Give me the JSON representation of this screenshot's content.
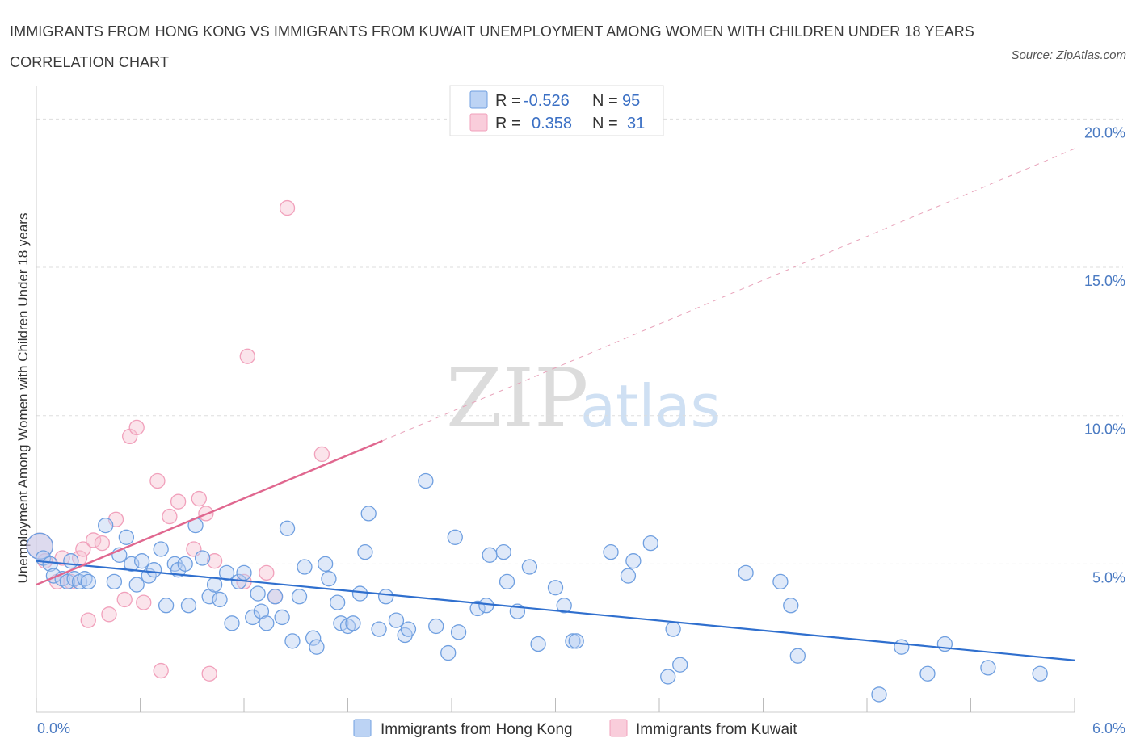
{
  "title": "IMMIGRANTS FROM HONG KONG VS IMMIGRANTS FROM KUWAIT UNEMPLOYMENT AMONG WOMEN WITH CHILDREN UNDER 18 YEARS CORRELATION CHART",
  "source": "Source: ZipAtlas.com",
  "watermark": {
    "zip": "ZIP",
    "atlas": "atlas"
  },
  "colors": {
    "blue": "#6f9fe0",
    "pink": "#f1a0bb",
    "blue_line": "#2f6fce",
    "pink_line": "#e0678f"
  },
  "legend": {
    "r_label": "R =",
    "n_label": "N =",
    "rows": [
      {
        "r": "-0.526",
        "n": "95"
      },
      {
        "r": "0.358",
        "n": "31"
      }
    ]
  },
  "chart_data": {
    "type": "scatter",
    "title": "IMMIGRANTS FROM HONG KONG VS IMMIGRANTS FROM KUWAIT UNEMPLOYMENT AMONG WOMEN WITH CHILDREN UNDER 18 YEARS CORRELATION CHART",
    "xlabel": "",
    "ylabel": "Unemployment Among Women with Children Under 18 years",
    "xlim": [
      0,
      6
    ],
    "ylim": [
      0,
      20
    ],
    "x_tick_labels": [
      "0.0%",
      "6.0%"
    ],
    "y_ticks": [
      5,
      10,
      15,
      20
    ],
    "y_tick_labels": [
      "5.0%",
      "10.0%",
      "15.0%",
      "20.0%"
    ],
    "grid": true,
    "legend_position": "top-center",
    "series": [
      {
        "name": "Immigrants from Hong Kong",
        "color": "#6f9fe0",
        "r": -0.526,
        "n": 95,
        "trend": {
          "x": [
            0,
            6
          ],
          "y": [
            5.1,
            1.75
          ],
          "style": "solid"
        },
        "points": [
          [
            0.02,
            5.6
          ],
          [
            0.04,
            5.2
          ],
          [
            0.08,
            5.0
          ],
          [
            0.1,
            4.6
          ],
          [
            0.15,
            4.5
          ],
          [
            0.18,
            4.4
          ],
          [
            0.2,
            5.1
          ],
          [
            0.22,
            4.5
          ],
          [
            0.25,
            4.4
          ],
          [
            0.28,
            4.5
          ],
          [
            0.3,
            4.4
          ],
          [
            0.4,
            6.3
          ],
          [
            0.45,
            4.4
          ],
          [
            0.48,
            5.3
          ],
          [
            0.52,
            5.9
          ],
          [
            0.55,
            5.0
          ],
          [
            0.58,
            4.3
          ],
          [
            0.61,
            5.1
          ],
          [
            0.65,
            4.6
          ],
          [
            0.68,
            4.8
          ],
          [
            0.72,
            5.5
          ],
          [
            0.75,
            3.6
          ],
          [
            0.8,
            5.0
          ],
          [
            0.82,
            4.8
          ],
          [
            0.86,
            5.0
          ],
          [
            0.88,
            3.6
          ],
          [
            0.92,
            6.3
          ],
          [
            0.96,
            5.2
          ],
          [
            1.0,
            3.9
          ],
          [
            1.03,
            4.3
          ],
          [
            1.06,
            3.8
          ],
          [
            1.1,
            4.7
          ],
          [
            1.13,
            3.0
          ],
          [
            1.17,
            4.4
          ],
          [
            1.2,
            4.7
          ],
          [
            1.25,
            3.2
          ],
          [
            1.28,
            4.0
          ],
          [
            1.3,
            3.4
          ],
          [
            1.33,
            3.0
          ],
          [
            1.38,
            3.9
          ],
          [
            1.42,
            3.2
          ],
          [
            1.45,
            6.2
          ],
          [
            1.48,
            2.4
          ],
          [
            1.52,
            3.9
          ],
          [
            1.55,
            4.9
          ],
          [
            1.6,
            2.5
          ],
          [
            1.62,
            2.2
          ],
          [
            1.67,
            5.0
          ],
          [
            1.69,
            4.5
          ],
          [
            1.74,
            3.7
          ],
          [
            1.76,
            3.0
          ],
          [
            1.8,
            2.9
          ],
          [
            1.83,
            3.0
          ],
          [
            1.87,
            4.0
          ],
          [
            1.9,
            5.4
          ],
          [
            1.92,
            6.7
          ],
          [
            1.98,
            2.8
          ],
          [
            2.02,
            3.9
          ],
          [
            2.08,
            3.1
          ],
          [
            2.13,
            2.6
          ],
          [
            2.15,
            2.8
          ],
          [
            2.25,
            7.8
          ],
          [
            2.31,
            2.9
          ],
          [
            2.38,
            2.0
          ],
          [
            2.42,
            5.9
          ],
          [
            2.44,
            2.7
          ],
          [
            2.55,
            3.5
          ],
          [
            2.6,
            3.6
          ],
          [
            2.62,
            5.3
          ],
          [
            2.7,
            5.4
          ],
          [
            2.72,
            4.4
          ],
          [
            2.78,
            3.4
          ],
          [
            2.85,
            4.9
          ],
          [
            2.9,
            2.3
          ],
          [
            3.0,
            4.2
          ],
          [
            3.05,
            3.6
          ],
          [
            3.1,
            2.4
          ],
          [
            3.12,
            2.4
          ],
          [
            3.32,
            5.4
          ],
          [
            3.42,
            4.6
          ],
          [
            3.45,
            5.1
          ],
          [
            3.55,
            5.7
          ],
          [
            3.65,
            1.2
          ],
          [
            3.68,
            2.8
          ],
          [
            3.72,
            1.6
          ],
          [
            4.1,
            4.7
          ],
          [
            4.3,
            4.4
          ],
          [
            4.36,
            3.6
          ],
          [
            4.4,
            1.9
          ],
          [
            4.87,
            0.6
          ],
          [
            5.0,
            2.2
          ],
          [
            5.15,
            1.3
          ],
          [
            5.25,
            2.3
          ],
          [
            5.5,
            1.5
          ],
          [
            5.8,
            1.3
          ]
        ]
      },
      {
        "name": "Immigrants from Kuwait",
        "color": "#f1a0bb",
        "r": 0.358,
        "n": 31,
        "trend": {
          "x": [
            0,
            2.0
          ],
          "y": [
            4.3,
            9.15
          ],
          "style": "solid",
          "extension": {
            "x": [
              2.0,
              6
            ],
            "y": [
              9.15,
              19.0
            ],
            "style": "dashed"
          }
        },
        "points": [
          [
            0.02,
            5.6
          ],
          [
            0.05,
            5.1
          ],
          [
            0.12,
            4.4
          ],
          [
            0.15,
            5.2
          ],
          [
            0.2,
            4.4
          ],
          [
            0.25,
            5.2
          ],
          [
            0.27,
            5.5
          ],
          [
            0.3,
            3.1
          ],
          [
            0.33,
            5.8
          ],
          [
            0.38,
            5.7
          ],
          [
            0.42,
            3.3
          ],
          [
            0.46,
            6.5
          ],
          [
            0.51,
            3.8
          ],
          [
            0.54,
            9.3
          ],
          [
            0.58,
            9.6
          ],
          [
            0.62,
            3.7
          ],
          [
            0.7,
            7.8
          ],
          [
            0.72,
            1.4
          ],
          [
            0.77,
            6.6
          ],
          [
            0.82,
            7.1
          ],
          [
            0.91,
            5.5
          ],
          [
            0.94,
            7.2
          ],
          [
            0.98,
            6.7
          ],
          [
            1.0,
            1.3
          ],
          [
            1.03,
            5.1
          ],
          [
            1.2,
            4.4
          ],
          [
            1.22,
            12.0
          ],
          [
            1.33,
            4.7
          ],
          [
            1.38,
            3.9
          ],
          [
            1.45,
            17.0
          ],
          [
            1.65,
            8.7
          ]
        ]
      }
    ]
  },
  "bottom_legend": [
    {
      "label": "Immigrants from Hong Kong"
    },
    {
      "label": "Immigrants from Kuwait"
    }
  ]
}
